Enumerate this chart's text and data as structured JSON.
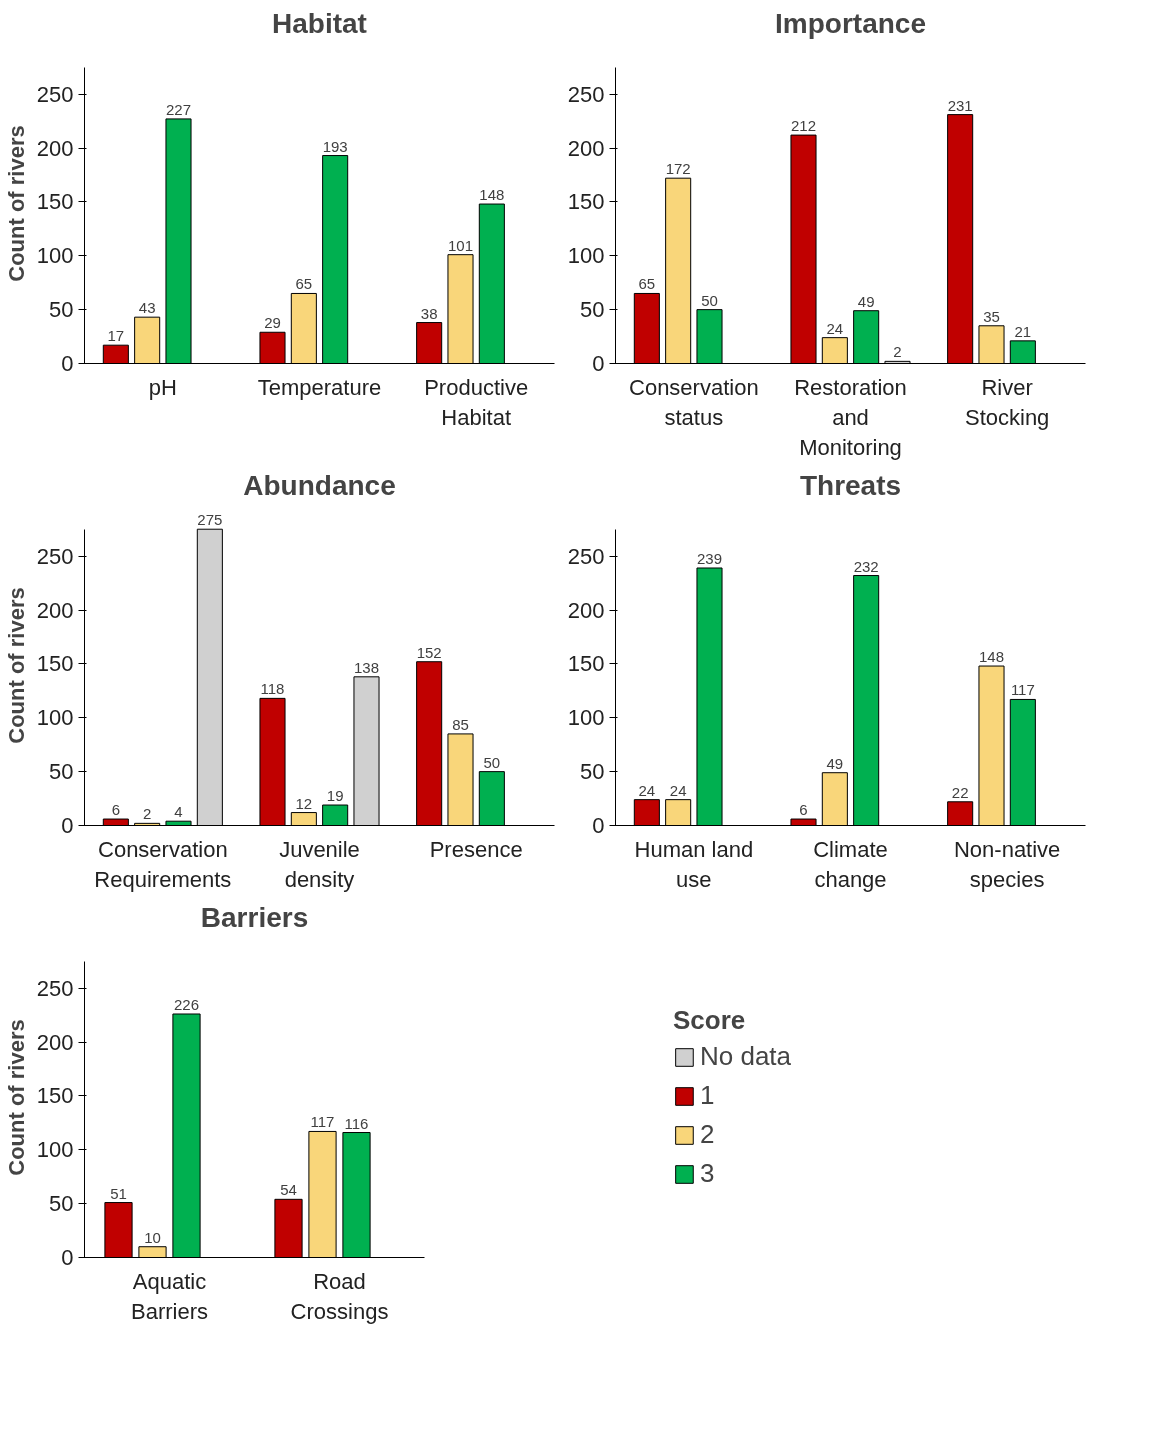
{
  "chart_data": [
    {
      "type": "bar",
      "title": "Habitat",
      "ylabel": "Count of rivers",
      "categories": [
        "pH",
        "Temperature",
        "Productive Habitat"
      ],
      "ylim": [
        0,
        275
      ],
      "yticks": [
        0,
        50,
        100,
        150,
        200,
        250
      ],
      "grid": false,
      "data_labels": true,
      "series": [
        {
          "color": "#c00000",
          "values": [
            17,
            29,
            38
          ]
        },
        {
          "color": "#f9d67a",
          "values": [
            43,
            65,
            101
          ]
        },
        {
          "color": "#00b050",
          "values": [
            227,
            193,
            148
          ]
        },
        {
          "color": "#d0d0d0",
          "values": [
            null,
            null,
            null
          ]
        }
      ]
    },
    {
      "type": "bar",
      "title": "Importance",
      "categories": [
        "Conservation status",
        "Restoration and Monitoring",
        "River Stocking"
      ],
      "ylim": [
        0,
        275
      ],
      "yticks": [
        0,
        50,
        100,
        150,
        200,
        250
      ],
      "grid": false,
      "data_labels": true,
      "series": [
        {
          "color": "#c00000",
          "values": [
            65,
            212,
            231
          ]
        },
        {
          "color": "#f9d67a",
          "values": [
            172,
            24,
            35
          ]
        },
        {
          "color": "#00b050",
          "values": [
            50,
            49,
            21
          ]
        },
        {
          "color": "#d0d0d0",
          "values": [
            null,
            2,
            null
          ]
        }
      ]
    },
    {
      "type": "bar",
      "title": "Abundance",
      "ylabel": "Count of rivers",
      "categories": [
        "Conservation Requirements",
        "Juvenile density",
        "Presence"
      ],
      "ylim": [
        0,
        275
      ],
      "yticks": [
        0,
        50,
        100,
        150,
        200,
        250
      ],
      "grid": false,
      "data_labels": true,
      "series": [
        {
          "color": "#c00000",
          "values": [
            6,
            118,
            152
          ]
        },
        {
          "color": "#f9d67a",
          "values": [
            2,
            12,
            85
          ]
        },
        {
          "color": "#00b050",
          "values": [
            4,
            19,
            50
          ]
        },
        {
          "color": "#d0d0d0",
          "values": [
            275,
            138,
            null
          ]
        }
      ]
    },
    {
      "type": "bar",
      "title": "Threats",
      "categories": [
        "Human land use",
        "Climate change",
        "Non-native species"
      ],
      "ylim": [
        0,
        275
      ],
      "yticks": [
        0,
        50,
        100,
        150,
        200,
        250
      ],
      "grid": false,
      "data_labels": true,
      "series": [
        {
          "color": "#c00000",
          "values": [
            24,
            6,
            22
          ]
        },
        {
          "color": "#f9d67a",
          "values": [
            24,
            49,
            148
          ]
        },
        {
          "color": "#00b050",
          "values": [
            239,
            232,
            117
          ]
        },
        {
          "color": "#d0d0d0",
          "values": [
            null,
            null,
            null
          ]
        }
      ]
    },
    {
      "type": "bar",
      "title": "Barriers",
      "ylabel": "Count of rivers",
      "categories": [
        "Aquatic Barriers",
        "Road Crossings"
      ],
      "ylim": [
        0,
        275
      ],
      "yticks": [
        0,
        50,
        100,
        150,
        200,
        250
      ],
      "grid": false,
      "data_labels": true,
      "legend": "right",
      "legend_title": "Score",
      "series": [
        {
          "name": "1",
          "color": "#c00000",
          "values": [
            51,
            54
          ]
        },
        {
          "name": "2",
          "color": "#f9d67a",
          "values": [
            10,
            117
          ]
        },
        {
          "name": "3",
          "color": "#00b050",
          "values": [
            226,
            116
          ]
        },
        {
          "name": "No data",
          "color": "#d0d0d0",
          "values": [
            null,
            null
          ]
        }
      ]
    }
  ]
}
